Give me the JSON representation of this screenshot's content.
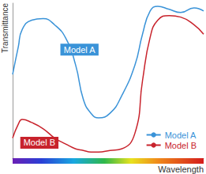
{
  "chart_data": {
    "type": "line",
    "xlabel": "Wavelength",
    "ylabel": "Transmittance",
    "x": [
      0,
      3,
      5,
      10,
      16,
      22,
      28,
      33,
      37,
      41,
      45,
      51,
      57,
      64,
      68,
      72,
      76,
      82,
      88,
      95,
      100
    ],
    "series": [
      {
        "name": "Model A",
        "color": "#3a93d8",
        "values": [
          54,
          72,
          83,
          89,
          90,
          86,
          77,
          60,
          38,
          29,
          26,
          29,
          40,
          60,
          80,
          95,
          98,
          96,
          94,
          97,
          95
        ]
      },
      {
        "name": "Model B",
        "color": "#c8232c",
        "values": [
          13,
          22,
          25,
          23,
          19,
          13,
          9,
          6,
          5,
          4,
          4,
          5,
          6,
          16,
          50,
          78,
          89,
          92,
          91,
          86,
          80
        ]
      }
    ],
    "xlim": [
      0,
      100
    ],
    "ylim": [
      0,
      100
    ],
    "annotations": [
      {
        "text": "Model A",
        "x": 35,
        "y": 70
      },
      {
        "text": "Model B",
        "x": 14,
        "y": 10
      }
    ],
    "legend": "lower right",
    "grid": false,
    "tick_labels": false
  }
}
